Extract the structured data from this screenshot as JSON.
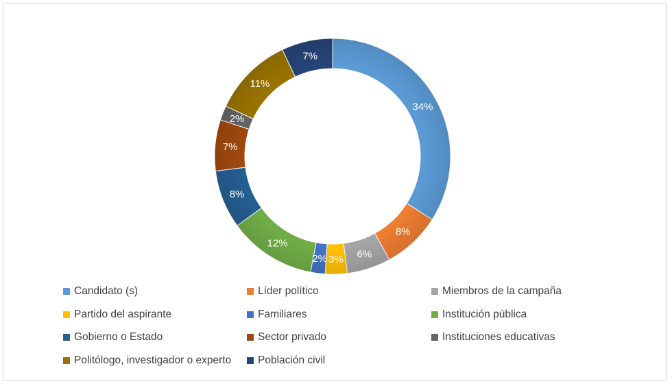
{
  "chart_data": {
    "type": "pie",
    "title": "",
    "donut": true,
    "categories": [
      "Candidato (s)",
      "Líder político",
      "Miembros de la campaña",
      "Partido del aspirante",
      "Familiares",
      "Institución pública",
      "Gobierno o Estado",
      "Sector privado",
      "Instituciones educativas",
      "Politólogo, investigador o experto",
      "Población civil"
    ],
    "values": [
      34,
      8,
      6,
      3,
      2,
      12,
      8,
      7,
      2,
      11,
      7
    ],
    "labels": [
      "34%",
      "8%",
      "6%",
      "3%",
      "2%",
      "12%",
      "8%",
      "7%",
      "2%",
      "11%",
      "7%"
    ],
    "colors": [
      "#5b9bd5",
      "#ed7d31",
      "#a5a5a5",
      "#ffc000",
      "#4472c4",
      "#70ad47",
      "#255e91",
      "#9e480e",
      "#636363",
      "#997300",
      "#264478"
    ],
    "legend_position": "bottom"
  }
}
